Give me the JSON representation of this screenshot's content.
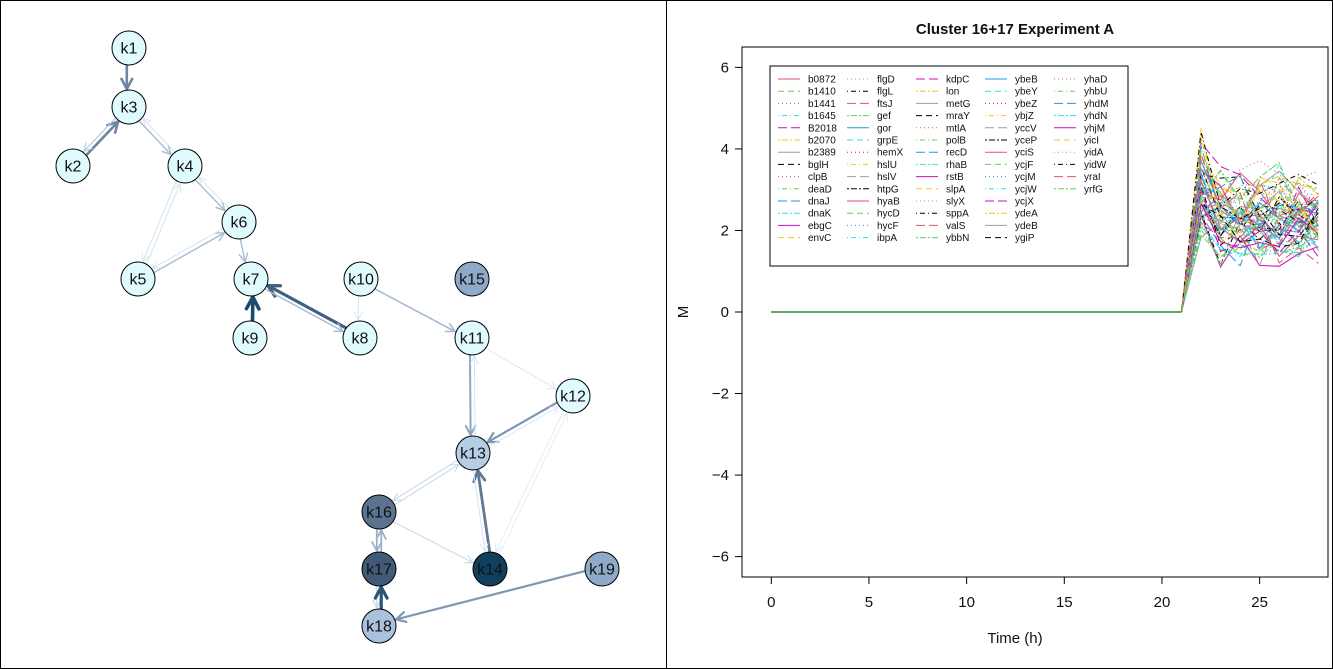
{
  "network": {
    "nodes": [
      {
        "id": "k1",
        "fill": "#e0fbfd"
      },
      {
        "id": "k2",
        "fill": "#e0fbfd"
      },
      {
        "id": "k3",
        "fill": "#e0fbfd"
      },
      {
        "id": "k4",
        "fill": "#e0fbfd"
      },
      {
        "id": "k5",
        "fill": "#e0fbfd"
      },
      {
        "id": "k6",
        "fill": "#e0fbfd"
      },
      {
        "id": "k7",
        "fill": "#e0fbfd"
      },
      {
        "id": "k8",
        "fill": "#e0fbfd"
      },
      {
        "id": "k9",
        "fill": "#e0fbfd"
      },
      {
        "id": "k10",
        "fill": "#e0fbfd"
      },
      {
        "id": "k11",
        "fill": "#e0fbfd"
      },
      {
        "id": "k12",
        "fill": "#e0fbfd"
      },
      {
        "id": "k13",
        "fill": "#b6cde6"
      },
      {
        "id": "k14",
        "fill": "#11405e"
      },
      {
        "id": "k15",
        "fill": "#8fa9c9"
      },
      {
        "id": "k16",
        "fill": "#5a7490"
      },
      {
        "id": "k17",
        "fill": "#405a78"
      },
      {
        "id": "k18",
        "fill": "#a9c1dd"
      },
      {
        "id": "k19",
        "fill": "#8fa9c9"
      }
    ],
    "edges": [
      {
        "from": "k1",
        "to": "k3",
        "color": "#6d87a3",
        "weight": 2.6
      },
      {
        "from": "k2",
        "to": "k3",
        "color": "#6d87a3",
        "weight": 2.6
      },
      {
        "from": "k3",
        "to": "k2",
        "color": "#b8cbe0",
        "weight": 1.2
      },
      {
        "from": "k3",
        "to": "k4",
        "color": "#a7bbd3",
        "weight": 1.4
      },
      {
        "from": "k4",
        "to": "k3",
        "color": "#d3e3f3",
        "weight": 1.0
      },
      {
        "from": "k4",
        "to": "k6",
        "color": "#a7bbd3",
        "weight": 1.4
      },
      {
        "from": "k6",
        "to": "k4",
        "color": "#d3e3f3",
        "weight": 1.0
      },
      {
        "from": "k5",
        "to": "k4",
        "color": "#d3e3f3",
        "weight": 1.0
      },
      {
        "from": "k4",
        "to": "k5",
        "color": "#d3e3f3",
        "weight": 1.0
      },
      {
        "from": "k5",
        "to": "k6",
        "color": "#a7bbd3",
        "weight": 1.4
      },
      {
        "from": "k6",
        "to": "k5",
        "color": "#d3e3f3",
        "weight": 1.0
      },
      {
        "from": "k6",
        "to": "k7",
        "color": "#a7bbd3",
        "weight": 1.4
      },
      {
        "from": "k9",
        "to": "k7",
        "color": "#1e4a6b",
        "weight": 3.6
      },
      {
        "from": "k8",
        "to": "k7",
        "color": "#3f607e",
        "weight": 3.2
      },
      {
        "from": "k7",
        "to": "k8",
        "color": "#a7bbd3",
        "weight": 1.4
      },
      {
        "from": "k10",
        "to": "k8",
        "color": "#d3e3f3",
        "weight": 1.0
      },
      {
        "from": "k10",
        "to": "k11",
        "color": "#a7bbd3",
        "weight": 1.6
      },
      {
        "from": "k11",
        "to": "k12",
        "color": "#dbe8f5",
        "weight": 1.0
      },
      {
        "from": "k11",
        "to": "k13",
        "color": "#8fa6c1",
        "weight": 2.0
      },
      {
        "from": "k13",
        "to": "k11",
        "color": "#d3e3f3",
        "weight": 1.0
      },
      {
        "from": "k12",
        "to": "k13",
        "color": "#7f97b3",
        "weight": 2.2
      },
      {
        "from": "k13",
        "to": "k12",
        "color": "#dbe8f5",
        "weight": 1.0
      },
      {
        "from": "k14",
        "to": "k12",
        "color": "#e3eef8",
        "weight": 1.0
      },
      {
        "from": "k12",
        "to": "k14",
        "color": "#e3eef8",
        "weight": 1.0
      },
      {
        "from": "k14",
        "to": "k13",
        "color": "#5e7895",
        "weight": 2.8
      },
      {
        "from": "k13",
        "to": "k14",
        "color": "#d3e3f3",
        "weight": 1.0
      },
      {
        "from": "k13",
        "to": "k16",
        "color": "#c5d6ea",
        "weight": 1.0
      },
      {
        "from": "k16",
        "to": "k13",
        "color": "#c5d6ea",
        "weight": 1.0
      },
      {
        "from": "k16",
        "to": "k14",
        "color": "#c5d6ea",
        "weight": 1.0
      },
      {
        "from": "k16",
        "to": "k17",
        "color": "#9bb1cb",
        "weight": 1.8
      },
      {
        "from": "k17",
        "to": "k16",
        "color": "#9bb1cb",
        "weight": 1.8
      },
      {
        "from": "k17",
        "to": "k18",
        "color": "#c5d6ea",
        "weight": 1.2
      },
      {
        "from": "k18",
        "to": "k17",
        "color": "#2c5272",
        "weight": 3.2
      },
      {
        "from": "k19",
        "to": "k18",
        "color": "#7f97b3",
        "weight": 2.2
      }
    ]
  },
  "plot": {
    "title": "Cluster 16+17 Experiment A",
    "xlabel": "Time (h)",
    "ylabel": "M",
    "xticks": [
      "0",
      "5",
      "10",
      "15",
      "20",
      "25"
    ],
    "yticks": [
      "−6",
      "−4",
      "−2",
      "0",
      "2",
      "4",
      "6"
    ]
  },
  "chart_data": {
    "type": "line",
    "title": "Cluster 16+17 Experiment A",
    "xlabel": "Time (h)",
    "ylabel": "M",
    "xlim": [
      -1.5,
      28.5
    ],
    "ylim": [
      -6.5,
      6.5
    ],
    "xticks": [
      0,
      5,
      10,
      15,
      20,
      25
    ],
    "yticks": [
      -6,
      -4,
      -2,
      0,
      2,
      4,
      6
    ],
    "grid": false,
    "legend_position": "top-left",
    "x": [
      0,
      21,
      22,
      23,
      24,
      25,
      26,
      27,
      28
    ],
    "series_names": [
      "b0872",
      "b1410",
      "b1441",
      "b1645",
      "B2018",
      "b2070",
      "b2389",
      "bglH",
      "clpB",
      "deaD",
      "dnaJ",
      "dnaK",
      "ebgC",
      "envC",
      "flgD",
      "flgL",
      "ftsJ",
      "gef",
      "gor",
      "grpE",
      "hemX",
      "hslU",
      "hslV",
      "htpG",
      "hyaB",
      "hycD",
      "hycF",
      "ibpA",
      "kdpC",
      "lon",
      "metG",
      "mraY",
      "mtlA",
      "polB",
      "recD",
      "rhaB",
      "rstB",
      "slpA",
      "slyX",
      "sppA",
      "valS",
      "ybbN",
      "ybeB",
      "ybeY",
      "ybeZ",
      "ybjZ",
      "yccV",
      "yceP",
      "yciS",
      "ycjF",
      "ycjM",
      "ycjW",
      "ycjX",
      "ydeA",
      "ydeB",
      "ygiP",
      "yhaD",
      "yhbU",
      "yhdM",
      "yhdN",
      "yhjM",
      "yicI",
      "yidA",
      "yidW",
      "yraI",
      "yrfG"
    ],
    "series_style": {
      "colors": [
        "#df536b",
        "#61d04f",
        "#2297e6",
        "#28e2e5",
        "#cd0bbc",
        "#f5c710",
        "#9e9e9e",
        "#000000"
      ],
      "dash_cycle": [
        "solid",
        "dashed",
        "dotted",
        "dotdash",
        "longdash",
        "twodash"
      ]
    },
    "series_values_note_free": true,
    "values_after_21h_range": [
      1.1,
      4.5
    ],
    "values_before_21h": 0
  }
}
